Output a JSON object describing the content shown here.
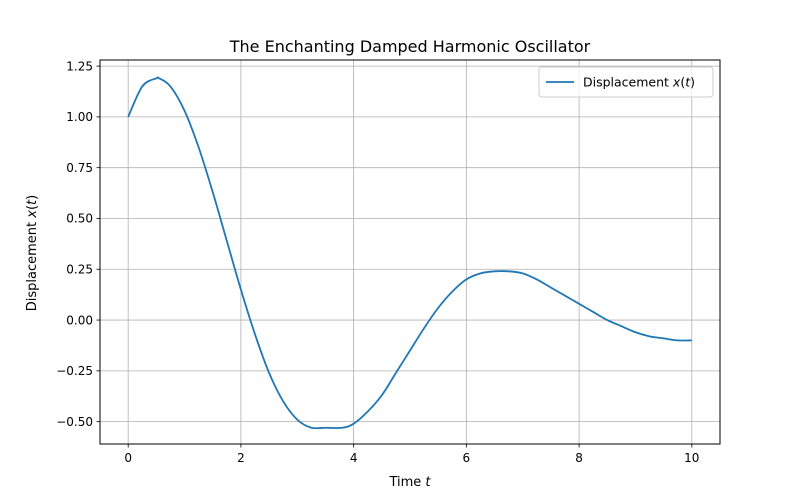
{
  "chart_data": {
    "type": "line",
    "title": "The Enchanting Damped Harmonic Oscillator",
    "xlabel": {
      "prefix": "Time ",
      "var": "t"
    },
    "ylabel": {
      "prefix": "Displacement ",
      "var": "x",
      "open": "(",
      "arg": "t",
      "close": ")"
    },
    "xlim": [
      -0.5,
      10.5
    ],
    "ylim": [
      -0.61,
      1.28
    ],
    "xticks": [
      0,
      2,
      4,
      6,
      8,
      10
    ],
    "xtick_labels": [
      "0",
      "2",
      "4",
      "6",
      "8",
      "10"
    ],
    "yticks": [
      -0.5,
      -0.25,
      0.0,
      0.25,
      0.5,
      0.75,
      1.0,
      1.25
    ],
    "ytick_labels": [
      "−0.50",
      "−0.25",
      "0.00",
      "0.25",
      "0.50",
      "0.75",
      "1.00",
      "1.25"
    ],
    "grid": true,
    "legend_placement": "top-right",
    "series": [
      {
        "name": {
          "prefix": "Displacement ",
          "var": "x",
          "open": "(",
          "arg": "t",
          "close": ")"
        },
        "color": "#1f77b4",
        "x": [
          0,
          0.25,
          0.5,
          0.55,
          0.75,
          1.0,
          1.25,
          1.5,
          1.75,
          2.0,
          2.25,
          2.5,
          2.75,
          3.0,
          3.25,
          3.5,
          3.8,
          4.0,
          4.25,
          4.5,
          4.75,
          5.0,
          5.25,
          5.5,
          5.75,
          6.0,
          6.25,
          6.5,
          6.75,
          7.0,
          7.25,
          7.5,
          7.75,
          8.0,
          8.25,
          8.5,
          8.75,
          9.0,
          9.25,
          9.5,
          9.75,
          10.0
        ],
        "y": [
          1.0,
          1.15,
          1.19,
          1.19,
          1.15,
          1.03,
          0.85,
          0.63,
          0.39,
          0.15,
          -0.07,
          -0.26,
          -0.4,
          -0.49,
          -0.53,
          -0.53,
          -0.53,
          -0.51,
          -0.45,
          -0.37,
          -0.26,
          -0.15,
          -0.04,
          0.06,
          0.14,
          0.2,
          0.23,
          0.24,
          0.24,
          0.23,
          0.2,
          0.16,
          0.12,
          0.08,
          0.04,
          0.0,
          -0.03,
          -0.06,
          -0.08,
          -0.09,
          -0.1,
          -0.1
        ]
      }
    ]
  }
}
